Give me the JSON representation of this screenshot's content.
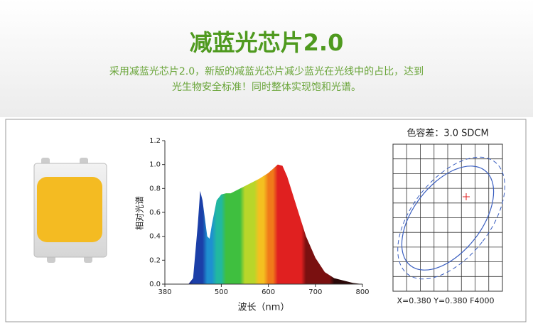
{
  "header": {
    "title": "减蓝光芯片2.0",
    "subtitle_lines": [
      "采用减蓝光芯片2.0，新版的减蓝光芯片减少蓝光在光线中的占比，达到",
      "光生物安全标准！同时整体实现饱和光谱。"
    ]
  },
  "chart_data": {
    "type": "area",
    "x_label": "波长（nm）",
    "y_label": "相对光谱",
    "x": [
      380,
      430,
      440,
      450,
      455,
      460,
      470,
      475,
      480,
      490,
      500,
      510,
      520,
      540,
      560,
      580,
      600,
      620,
      630,
      640,
      660,
      680,
      700,
      720,
      740,
      760,
      780,
      800
    ],
    "values": [
      0,
      0,
      0.05,
      0.5,
      0.78,
      0.7,
      0.4,
      0.38,
      0.5,
      0.7,
      0.75,
      0.76,
      0.76,
      0.8,
      0.84,
      0.88,
      0.93,
      1.0,
      0.99,
      0.9,
      0.65,
      0.4,
      0.22,
      0.1,
      0.05,
      0.03,
      0.01,
      0
    ],
    "xlim": [
      380,
      800
    ],
    "xticks": [
      380,
      500,
      600,
      700,
      800
    ],
    "ylim": [
      0,
      1.2
    ],
    "yticks": [
      {
        "value": 0,
        "label": "0.0"
      },
      0.2,
      0.4,
      0.6,
      0.8,
      {
        "value": 1,
        "label": "1.0"
      },
      1.2
    ]
  },
  "tolerance": {
    "title": "色容差：3.0 SDCM",
    "coordinates": "X=0.380  Y=0.380  F4000"
  }
}
